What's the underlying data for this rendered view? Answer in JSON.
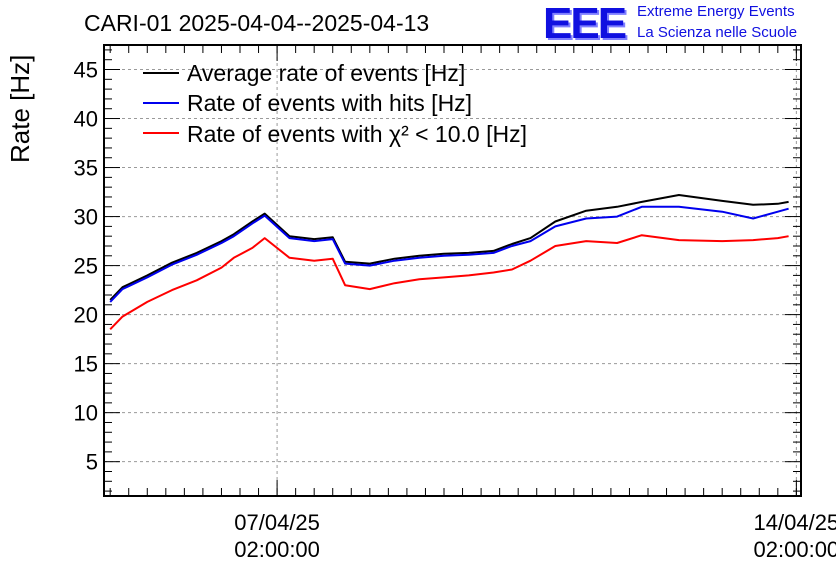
{
  "title": "CARI-01 2025-04-04--2025-04-13",
  "logo": {
    "mark": "EEE",
    "line1": "Extreme Energy Events",
    "line2": "La Scienza nelle Scuole"
  },
  "chart_data": {
    "type": "line",
    "ylabel": "Rate [Hz]",
    "xlabel": "",
    "ylim": [
      1.5,
      47.5
    ],
    "yticks": [
      5,
      10,
      15,
      20,
      25,
      30,
      35,
      40,
      45
    ],
    "xlim": [
      "2025-04-04 18:00",
      "2025-04-14 03:30"
    ],
    "xticks": [
      {
        "date": "07/04/25",
        "time": "02:00:00"
      },
      {
        "date": "14/04/25",
        "time": "02:00:00"
      }
    ],
    "grid": true,
    "legend_position": "top-left",
    "x_times": [
      "2025-04-04 20:00",
      "2025-04-05 00:00",
      "2025-04-05 08:00",
      "2025-04-05 16:00",
      "2025-04-06 00:00",
      "2025-04-06 08:00",
      "2025-04-06 12:00",
      "2025-04-06 18:00",
      "2025-04-06 22:00",
      "2025-04-07 06:00",
      "2025-04-07 14:00",
      "2025-04-07 20:00",
      "2025-04-08 00:00",
      "2025-04-08 08:00",
      "2025-04-08 16:00",
      "2025-04-09 00:00",
      "2025-04-09 08:00",
      "2025-04-09 16:00",
      "2025-04-10 00:00",
      "2025-04-10 06:00",
      "2025-04-10 12:00",
      "2025-04-10 20:00",
      "2025-04-11 06:00",
      "2025-04-11 16:00",
      "2025-04-12 00:00",
      "2025-04-12 12:00",
      "2025-04-13 02:00",
      "2025-04-13 12:00",
      "2025-04-13 20:00",
      "2025-04-13 23:30"
    ],
    "series": [
      {
        "name": "Average rate of events [Hz]",
        "color": "#000000",
        "values": [
          21.5,
          22.8,
          24.0,
          25.3,
          26.3,
          27.5,
          28.2,
          29.5,
          30.3,
          28.0,
          27.7,
          27.9,
          25.4,
          25.2,
          25.7,
          26.0,
          26.2,
          26.3,
          26.5,
          27.2,
          27.8,
          29.5,
          30.6,
          31.0,
          31.5,
          32.2,
          31.6,
          31.2,
          31.3,
          31.5
        ]
      },
      {
        "name": "Rate of events with hits [Hz]",
        "color": "#0000ee",
        "values": [
          21.3,
          22.6,
          23.8,
          25.1,
          26.1,
          27.3,
          28.0,
          29.3,
          30.1,
          27.8,
          27.5,
          27.7,
          25.2,
          25.0,
          25.5,
          25.8,
          26.0,
          26.1,
          26.3,
          27.0,
          27.5,
          29.0,
          29.8,
          30.0,
          31.0,
          31.0,
          30.5,
          29.8,
          30.5,
          30.8
        ]
      },
      {
        "name": "Rate of events with χ² < 10.0 [Hz]",
        "color": "#ff0000",
        "values": [
          18.5,
          19.8,
          21.3,
          22.5,
          23.5,
          24.8,
          25.8,
          26.8,
          27.8,
          25.8,
          25.5,
          25.7,
          23.0,
          22.6,
          23.2,
          23.6,
          23.8,
          24.0,
          24.3,
          24.6,
          25.5,
          27.0,
          27.5,
          27.3,
          28.1,
          27.6,
          27.5,
          27.6,
          27.8,
          28.0
        ]
      }
    ]
  }
}
